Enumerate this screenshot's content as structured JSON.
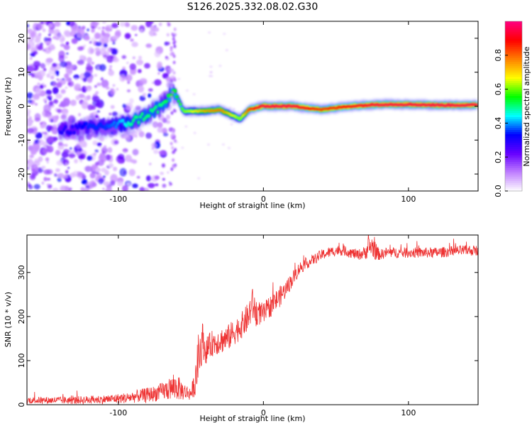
{
  "title": "S126.2025.332.08.02.G30",
  "chart_data": [
    {
      "type": "heatmap",
      "xlabel": "Height of straight line (km)",
      "ylabel": "Frequency (Hz)",
      "xlim": [
        -163,
        148
      ],
      "ylim": [
        -25,
        25
      ],
      "xticks": [
        -100,
        0,
        100
      ],
      "yticks": [
        -20,
        -10,
        0,
        10,
        20
      ],
      "colorbar": {
        "label": "Normalized spectral amplitude",
        "range": [
          0,
          1
        ],
        "ticks": [
          "0.0",
          "0.2",
          "0.4",
          "0.6",
          "0.8"
        ],
        "tick_values": [
          0,
          0.2,
          0.4,
          0.6,
          0.8
        ],
        "colors": [
          "#ffffff",
          "#c080ff",
          "#6600ff",
          "#0000ff",
          "#00ffff",
          "#00ff00",
          "#ffff00",
          "#ff8000",
          "#ff0000",
          "#ff0080"
        ]
      },
      "ridge": {
        "x": [
          -140,
          -130,
          -120,
          -110,
          -100,
          -90,
          -80,
          -70,
          -63,
          -60,
          -55,
          -50,
          -40,
          -30,
          -20,
          -16,
          -10,
          0,
          20,
          40,
          60,
          80,
          100,
          120,
          148
        ],
        "frequency": [
          -7,
          -6.8,
          -6.2,
          -5.8,
          -5.5,
          -4.5,
          -2.5,
          0,
          4,
          3,
          -1.5,
          -1.5,
          -1.5,
          -1,
          -3,
          -3.8,
          -1,
          0,
          0,
          -1,
          0,
          0.5,
          0.5,
          0.3,
          0.3
        ],
        "amplitude": [
          0.3,
          0.3,
          0.35,
          0.35,
          0.4,
          0.5,
          0.5,
          0.5,
          0.55,
          0.55,
          0.6,
          0.65,
          0.75,
          0.8,
          0.65,
          0.6,
          0.85,
          0.95,
          0.95,
          0.85,
          0.9,
          0.95,
          0.95,
          0.95,
          0.95
        ]
      }
    },
    {
      "type": "line",
      "xlabel": "Height of straight line (km)",
      "ylabel": "SNR (10 * v/v)",
      "xlim": [
        -163,
        148
      ],
      "ylim": [
        0,
        385
      ],
      "xticks": [
        -100,
        0,
        100
      ],
      "yticks": [
        0,
        100,
        200,
        300
      ],
      "series": [
        {
          "name": "SNR",
          "color": "#ee3333",
          "x": [
            -163,
            -150,
            -130,
            -110,
            -95,
            -85,
            -75,
            -70,
            -65,
            -60,
            -55,
            -50,
            -47,
            -45,
            -43,
            -42,
            -40,
            -38,
            -35,
            -30,
            -25,
            -20,
            -15,
            -10,
            -8,
            -5,
            0,
            5,
            10,
            15,
            20,
            25,
            30,
            35,
            40,
            45,
            50,
            55,
            60,
            65,
            70,
            72,
            75,
            78,
            80,
            85,
            90,
            100,
            110,
            120,
            130,
            140,
            148
          ],
          "y": [
            10,
            10,
            10,
            12,
            15,
            20,
            25,
            30,
            35,
            40,
            30,
            25,
            50,
            100,
            130,
            150,
            120,
            130,
            140,
            145,
            150,
            165,
            180,
            200,
            230,
            210,
            205,
            225,
            240,
            260,
            285,
            310,
            320,
            330,
            340,
            345,
            350,
            350,
            345,
            340,
            345,
            355,
            360,
            345,
            340,
            345,
            345,
            345,
            345,
            345,
            348,
            350,
            350
          ],
          "noise": [
            8,
            8,
            9,
            10,
            12,
            15,
            18,
            20,
            25,
            30,
            20,
            15,
            30,
            60,
            50,
            40,
            30,
            30,
            30,
            30,
            30,
            30,
            30,
            35,
            40,
            30,
            25,
            25,
            25,
            20,
            18,
            15,
            12,
            12,
            12,
            12,
            12,
            12,
            12,
            12,
            15,
            25,
            25,
            20,
            12,
            12,
            12,
            12,
            12,
            12,
            12,
            12,
            12
          ]
        }
      ]
    }
  ]
}
